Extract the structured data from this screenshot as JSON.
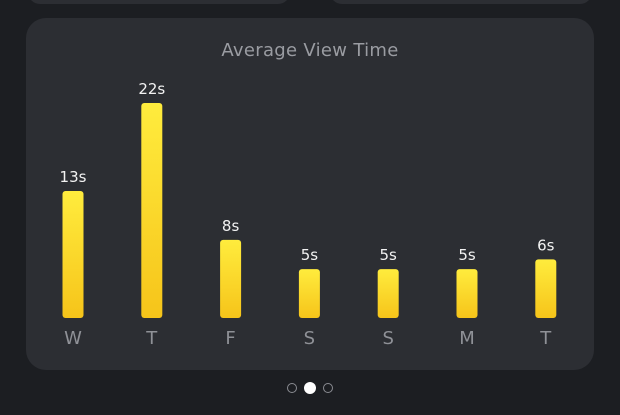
{
  "chart_data": {
    "type": "bar",
    "title": "Average View Time",
    "categories": [
      "W",
      "T",
      "F",
      "S",
      "S",
      "M",
      "T"
    ],
    "values": [
      13,
      22,
      8,
      5,
      5,
      5,
      6
    ],
    "value_labels": [
      "13s",
      "22s",
      "8s",
      "5s",
      "5s",
      "5s",
      "6s"
    ],
    "unit": "s",
    "ylim": [
      0,
      22
    ],
    "grid": false,
    "colors": {
      "bar_top": "#ffec3d",
      "bar_bottom": "#f6c41a",
      "value_label": "#f2f2f2",
      "category_label": "#8f9197"
    }
  },
  "pager": {
    "count": 3,
    "active_index": 1
  }
}
